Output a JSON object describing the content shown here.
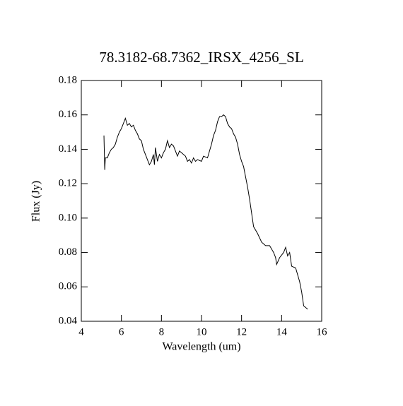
{
  "chart_data": {
    "type": "line",
    "title": "78.3182-68.7362_IRSX_4256_SL",
    "x_label": "Wavelength (um)",
    "y_label": "Flux (Jy)",
    "color": "#000000",
    "xlim": [
      4,
      16
    ],
    "ylim": [
      0.04,
      0.18
    ],
    "xticks": [
      4,
      6,
      8,
      10,
      12,
      14,
      16
    ],
    "yticks": [
      0.04,
      0.06,
      0.08,
      {
        "value": 0.1,
        "label": "0.10"
      },
      0.12,
      0.14,
      0.16,
      0.18
    ],
    "x": [
      5.13,
      5.17,
      5.2,
      5.3,
      5.4,
      5.5,
      5.6,
      5.7,
      5.8,
      5.9,
      6.0,
      6.1,
      6.2,
      6.3,
      6.4,
      6.5,
      6.6,
      6.7,
      6.8,
      6.9,
      7.0,
      7.1,
      7.2,
      7.3,
      7.4,
      7.5,
      7.6,
      7.65,
      7.7,
      7.8,
      7.9,
      8.0,
      8.1,
      8.2,
      8.3,
      8.4,
      8.5,
      8.6,
      8.7,
      8.8,
      8.9,
      9.0,
      9.2,
      9.3,
      9.4,
      9.5,
      9.6,
      9.7,
      9.8,
      10.0,
      10.1,
      10.3,
      10.4,
      10.5,
      10.6,
      10.7,
      10.8,
      10.9,
      11.0,
      11.1,
      11.2,
      11.3,
      11.4,
      11.5,
      11.6,
      11.7,
      11.8,
      11.9,
      12.0,
      12.1,
      12.2,
      12.3,
      12.4,
      12.5,
      12.6,
      12.8,
      13.0,
      13.2,
      13.4,
      13.6,
      13.7,
      13.75,
      13.9,
      14.1,
      14.2,
      14.3,
      14.4,
      14.5,
      14.7,
      14.9,
      15.0,
      15.1,
      15.2,
      15.3
    ],
    "values": [
      0.148,
      0.128,
      0.135,
      0.135,
      0.138,
      0.14,
      0.141,
      0.143,
      0.147,
      0.15,
      0.152,
      0.155,
      0.158,
      0.154,
      0.155,
      0.153,
      0.154,
      0.151,
      0.149,
      0.146,
      0.145,
      0.14,
      0.137,
      0.134,
      0.131,
      0.133,
      0.137,
      0.131,
      0.141,
      0.133,
      0.137,
      0.135,
      0.138,
      0.14,
      0.145,
      0.141,
      0.143,
      0.142,
      0.139,
      0.136,
      0.139,
      0.138,
      0.136,
      0.133,
      0.134,
      0.132,
      0.135,
      0.133,
      0.134,
      0.133,
      0.136,
      0.135,
      0.139,
      0.143,
      0.148,
      0.151,
      0.156,
      0.159,
      0.159,
      0.16,
      0.159,
      0.155,
      0.153,
      0.152,
      0.149,
      0.147,
      0.143,
      0.137,
      0.133,
      0.13,
      0.124,
      0.118,
      0.111,
      0.103,
      0.095,
      0.091,
      0.086,
      0.084,
      0.084,
      0.08,
      0.077,
      0.073,
      0.077,
      0.08,
      0.083,
      0.078,
      0.08,
      0.072,
      0.071,
      0.063,
      0.057,
      0.049,
      0.048,
      0.047
    ]
  }
}
